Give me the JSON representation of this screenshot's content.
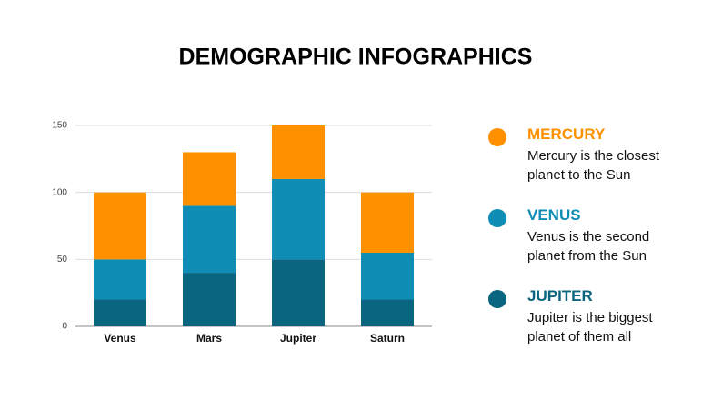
{
  "chart_data": {
    "type": "stacked-bar",
    "title": "DEMOGRAPHIC INFOGRAPHICS",
    "categories": [
      "Venus",
      "Mars",
      "Jupiter",
      "Saturn"
    ],
    "series": [
      {
        "name": "JUPITER",
        "description": "Jupiter is the biggest planet of them all",
        "color": "#0a6680",
        "values": [
          20,
          40,
          50,
          20
        ]
      },
      {
        "name": "VENUS",
        "description": "Venus is the second planet from the Sun",
        "color": "#0f8db5",
        "values": [
          30,
          50,
          60,
          35
        ]
      },
      {
        "name": "MERCURY",
        "description": "Mercury is the closest planet to the Sun",
        "color": "#ff9100",
        "values": [
          50,
          40,
          40,
          45
        ]
      }
    ],
    "ylim": [
      0,
      150
    ],
    "yticks": [
      0,
      50,
      100,
      150
    ],
    "grid": true
  }
}
